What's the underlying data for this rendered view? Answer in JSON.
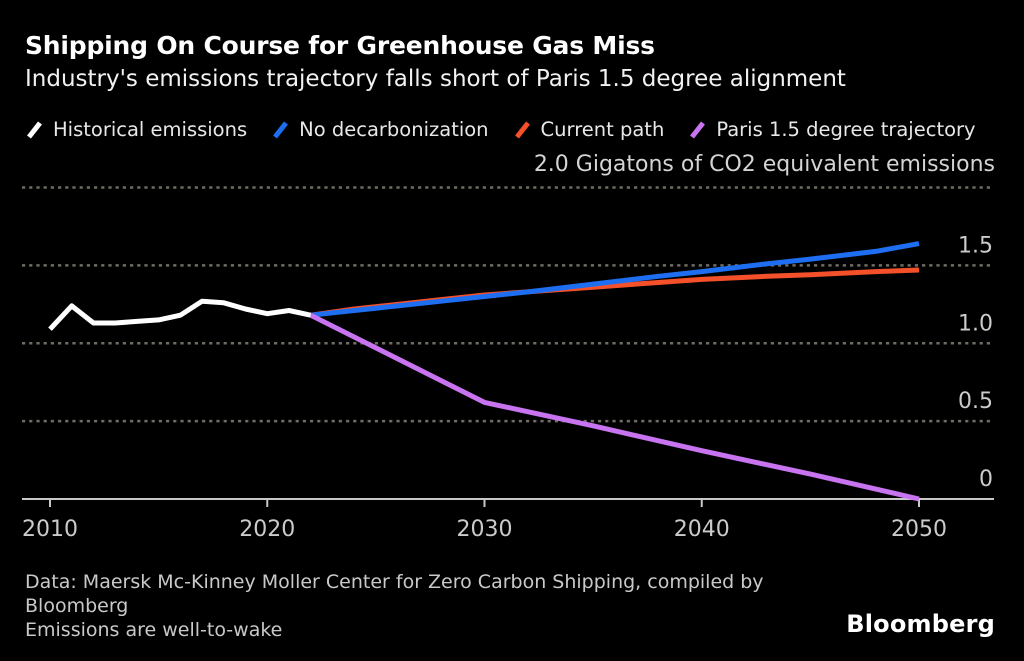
{
  "header": {
    "title": "Shipping On Course for Greenhouse Gas Miss",
    "subtitle": "Industry's emissions trajectory falls short of Paris 1.5 degree alignment",
    "axis_note": "2.0 Gigatons of CO2 equivalent emissions"
  },
  "chart_data": {
    "type": "line",
    "title": "Shipping On Course for Greenhouse Gas Miss",
    "subtitle": "Industry's emissions trajectory falls short of Paris 1.5 degree alignment",
    "xlabel": "",
    "ylabel": "Gigatons of CO2 equivalent emissions",
    "xlim": [
      2010,
      2050
    ],
    "ylim": [
      0,
      2.0
    ],
    "grid": "horizontal-dotted",
    "legend_position": "top",
    "xticks": [
      "2010",
      "2020",
      "2030",
      "2040",
      "2050"
    ],
    "yticks": [
      {
        "value": 2.0,
        "label": "2.0",
        "label_in_axis_note": true
      },
      {
        "value": 1.5,
        "label": "1.5"
      },
      {
        "value": 1.0,
        "label": "1.0"
      },
      {
        "value": 0.5,
        "label": "0.5"
      },
      {
        "value": 0.0,
        "label": "0",
        "solid_axis": true
      }
    ],
    "series": [
      {
        "name": "Historical emissions",
        "color": "#ffffff",
        "zorder": 4,
        "points": [
          [
            2010,
            1.09
          ],
          [
            2011,
            1.24
          ],
          [
            2012,
            1.13
          ],
          [
            2013,
            1.13
          ],
          [
            2014,
            1.14
          ],
          [
            2015,
            1.15
          ],
          [
            2016,
            1.18
          ],
          [
            2017,
            1.27
          ],
          [
            2018,
            1.26
          ],
          [
            2019,
            1.22
          ],
          [
            2020,
            1.19
          ],
          [
            2021,
            1.21
          ],
          [
            2022,
            1.18
          ]
        ]
      },
      {
        "name": "No decarbonization",
        "color": "#1e6ef2",
        "zorder": 2,
        "points": [
          [
            2022,
            1.18
          ],
          [
            2024,
            1.21
          ],
          [
            2026,
            1.24
          ],
          [
            2028,
            1.27
          ],
          [
            2030,
            1.3
          ],
          [
            2032,
            1.33
          ],
          [
            2035,
            1.38
          ],
          [
            2038,
            1.43
          ],
          [
            2040,
            1.46
          ],
          [
            2043,
            1.51
          ],
          [
            2045,
            1.54
          ],
          [
            2048,
            1.59
          ],
          [
            2050,
            1.64
          ]
        ]
      },
      {
        "name": "Current path",
        "color": "#f4502a",
        "zorder": 1,
        "points": [
          [
            2022,
            1.18
          ],
          [
            2024,
            1.22
          ],
          [
            2026,
            1.25
          ],
          [
            2028,
            1.28
          ],
          [
            2030,
            1.31
          ],
          [
            2033,
            1.34
          ],
          [
            2035,
            1.36
          ],
          [
            2038,
            1.39
          ],
          [
            2040,
            1.41
          ],
          [
            2043,
            1.43
          ],
          [
            2045,
            1.44
          ],
          [
            2048,
            1.46
          ],
          [
            2050,
            1.47
          ]
        ]
      },
      {
        "name": "Paris 1.5 degree trajectory",
        "color": "#c873f0",
        "zorder": 3,
        "points": [
          [
            2022,
            1.18
          ],
          [
            2030,
            0.62
          ],
          [
            2035,
            0.47
          ],
          [
            2040,
            0.31
          ],
          [
            2045,
            0.16
          ],
          [
            2050,
            0.0
          ]
        ]
      }
    ]
  },
  "footer": {
    "source_line1": "Data: Maersk Mc-Kinney Moller Center for Zero Carbon Shipping, compiled by",
    "source_line2": "Bloomberg",
    "note": "Emissions are well-to-wake",
    "logo": "Bloomberg"
  },
  "colors": {
    "background": "#000000",
    "gridline": "#6f6c64",
    "axis": "#c8c8c8",
    "tick_label": "#cbcbcb"
  }
}
